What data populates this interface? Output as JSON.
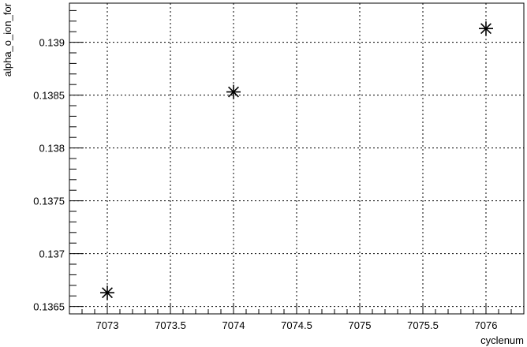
{
  "chart_data": {
    "type": "scatter",
    "title": "",
    "xlabel": "cyclenum",
    "ylabel": "alpha_o_ion_for",
    "xlim": [
      7072.7,
      7076.3
    ],
    "ylim": [
      0.13643,
      0.13937
    ],
    "grid": true,
    "grid_style": "dotted",
    "marker": "asterisk",
    "marker_color": "#000000",
    "x_ticks": [
      7073,
      7073.5,
      7074,
      7074.5,
      7075,
      7075.5,
      7076
    ],
    "x_tick_labels": [
      "7073",
      "7073.5",
      "7074",
      "7074.5",
      "7075",
      "7075.5",
      "7076"
    ],
    "y_ticks": [
      0.1365,
      0.137,
      0.1375,
      0.138,
      0.1385,
      0.139
    ],
    "y_tick_labels": [
      "0.1365",
      "0.137",
      "0.1375",
      "0.138",
      "0.1385",
      "0.139"
    ],
    "points": [
      {
        "x": 7073,
        "y": 0.13663
      },
      {
        "x": 7074,
        "y": 0.13853
      },
      {
        "x": 7076,
        "y": 0.13913
      }
    ]
  }
}
